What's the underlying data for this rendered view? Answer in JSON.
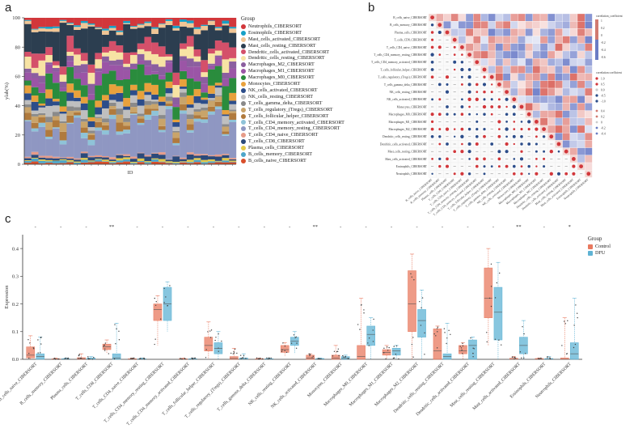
{
  "panels": {
    "a": {
      "label": "a",
      "chart_data": {
        "type": "bar",
        "stacked": true,
        "title": "",
        "xlabel": "ID",
        "ylabel": "ylab(%)",
        "ylim": [
          0,
          100
        ],
        "yticks": [
          0,
          20,
          40,
          60,
          80,
          100
        ],
        "n_samples": 30,
        "legend_title": "Group",
        "series": [
          {
            "name": "Neutrophils_CIBERSORT",
            "color": "#d2373b"
          },
          {
            "name": "Eosinophils_CIBERSORT",
            "color": "#17a0c6"
          },
          {
            "name": "Mast_cells_activated_CIBERSORT",
            "color": "#f0c595"
          },
          {
            "name": "Mast_cells_resting_CIBERSORT",
            "color": "#2c3e50"
          },
          {
            "name": "Dendritic_cells_activated_CIBERSORT",
            "color": "#d4506a"
          },
          {
            "name": "Dendritic_cells_resting_CIBERSORT",
            "color": "#f7e3a4"
          },
          {
            "name": "Macrophages_M2_CIBERSORT",
            "color": "#8b5e9f"
          },
          {
            "name": "Macrophages_M1_CIBERSORT",
            "color": "#9b55a6"
          },
          {
            "name": "Macrophages_M0_CIBERSORT",
            "color": "#2a8c3d"
          },
          {
            "name": "Monocytes_CIBERSORT",
            "color": "#e8a13c"
          },
          {
            "name": "NK_cells_activated_CIBERSORT",
            "color": "#2c4d8a"
          },
          {
            "name": "NK_cells_resting_CIBERSORT",
            "color": "#bfbfbf"
          },
          {
            "name": "T_cells_gamma_delta_CIBERSORT",
            "color": "#8a8a8a"
          },
          {
            "name": "T_cells_regulatory_(Tregs)_CIBERSORT",
            "color": "#c9a46a"
          },
          {
            "name": "T_cells_follicular_helper_CIBERSORT",
            "color": "#b07a3d"
          },
          {
            "name": "T_cells_CD4_memory_activated_CIBERSORT",
            "color": "#8fc3d8"
          },
          {
            "name": "T_cells_CD4_memory_resting_CIBERSORT",
            "color": "#8f97c2"
          },
          {
            "name": "T_cells_CD4_naive_CIBERSORT",
            "color": "#e69b88"
          },
          {
            "name": "T_cells_CD8_CIBERSORT",
            "color": "#2b4a7a"
          },
          {
            "name": "Plasma_cells_CIBERSORT",
            "color": "#e3c94a"
          },
          {
            "name": "B_cells_memory_CIBERSORT",
            "color": "#4ea6c9"
          },
          {
            "name": "B_cells_naive_CIBERSORT",
            "color": "#d94f2b"
          }
        ]
      }
    },
    "b": {
      "label": "b",
      "chart_data": {
        "type": "heatmap",
        "title": "",
        "rows": [
          "B_cells_naive_CIBERSORT",
          "B_cells_memory_CIBERSORT",
          "Plasma_cells_CIBERSORT",
          "T_cells_CD8_CIBERSORT",
          "T_cells_CD4_naive_CIBERSORT",
          "T_cells_CD4_memory_resting_CIBERSORT",
          "T_cells_CD4_memory_activated_CIBERSORT",
          "T_cells_follicular_helper_CIBERSORT",
          "T_cells_regulatory_(Tregs)_CIBERSORT",
          "T_cells_gamma_delta_CIBERSORT",
          "NK_cells_resting_CIBERSORT",
          "NK_cells_activated_CIBERSORT",
          "Monocytes_CIBERSORT",
          "Macrophages_M0_CIBERSORT",
          "Macrophages_M1_CIBERSORT",
          "Macrophages_M2_CIBERSORT",
          "Dendritic_cells_resting_CIBERSORT",
          "Dendritic_cells_activated_CIBERSORT",
          "Mast_cells_resting_CIBERSORT",
          "Mast_cells_activated_CIBERSORT",
          "Eosinophils_CIBERSORT",
          "Neutrophils_CIBERSORT"
        ],
        "legend_upper_title": "correlation_coefficient",
        "legend_upper_ticks": [
          "1",
          "0.2",
          "0",
          "-0.2",
          "-0.4",
          "-0.6"
        ],
        "legend_lower_title": "correlation coefficient",
        "legend_lower_ticks": [
          "1.0",
          "0.5",
          "0.0",
          "-0.5",
          "-1.0"
        ],
        "legend_lower_extra": [
          "0.4",
          "0.2",
          "0",
          "-0.2",
          "-0.4"
        ]
      }
    },
    "c": {
      "label": "c",
      "chart_data": {
        "type": "box",
        "xlabel": "",
        "ylabel": "Expression",
        "ylim": [
          0,
          0.45
        ],
        "yticks": [
          0.0,
          0.1,
          0.2,
          0.3,
          0.4
        ],
        "legend_title": "Group",
        "groups": [
          {
            "name": "Control",
            "color": "#e8795f"
          },
          {
            "name": "DFU",
            "color": "#5fb3d4"
          }
        ],
        "categories": [
          "B_cells_naive_CIBERSORT",
          "B_cells_memory_CIBERSORT",
          "Plasma_cells_CIBERSORT",
          "T_cells_CD8_CIBERSORT",
          "T_cells_CD4_naive_CIBERSORT",
          "T_cells_CD4_memory_resting_CIBERSORT",
          "T_cells_CD4_memory_activated_CIBERSORT",
          "T_cells_follicular_helper_CIBERSORT",
          "T_cells_regulatory_(Tregs)_CIBERSORT",
          "T_cells_gamma_delta_CIBERSORT",
          "NK_cells_resting_CIBERSORT",
          "NK_cells_activated_CIBERSORT",
          "Monocytes_CIBERSORT",
          "Macrophages_M0_CIBERSORT",
          "Macrophages_M1_CIBERSORT",
          "Macrophages_M2_CIBERSORT",
          "Dendritic_cells_resting_CIBERSORT",
          "Dendritic_cells_activated_CIBERSORT",
          "Mast_cells_resting_CIBERSORT",
          "Mast_cells_activated_CIBERSORT",
          "Eosinophils_CIBERSORT",
          "Neutrophils_CIBERSORT"
        ],
        "significance": [
          "-",
          "-",
          "-",
          "**",
          "-",
          "-",
          "-",
          "-",
          "-",
          "-",
          "-",
          "**",
          "-",
          "-",
          "-",
          "-",
          "-",
          "-",
          "-",
          "**",
          "-",
          "*"
        ],
        "series": [
          {
            "name": "Control",
            "boxes": [
              {
                "q1": 0.005,
                "median": 0.015,
                "q3": 0.045,
                "min": 0.0,
                "max": 0.085
              },
              {
                "q1": 0.0,
                "median": 0.0,
                "q3": 0.002,
                "min": 0.0,
                "max": 0.005
              },
              {
                "q1": 0.0,
                "median": 0.002,
                "q3": 0.006,
                "min": 0.0,
                "max": 0.02
              },
              {
                "q1": 0.035,
                "median": 0.045,
                "q3": 0.055,
                "min": 0.02,
                "max": 0.07
              },
              {
                "q1": 0.0,
                "median": 0.0,
                "q3": 0.002,
                "min": 0.0,
                "max": 0.005
              },
              {
                "q1": 0.14,
                "median": 0.18,
                "q3": 0.2,
                "min": 0.05,
                "max": 0.23
              },
              {
                "q1": 0.0,
                "median": 0.0,
                "q3": 0.002,
                "min": 0.0,
                "max": 0.005
              },
              {
                "q1": 0.03,
                "median": 0.05,
                "q3": 0.08,
                "min": 0.0,
                "max": 0.135
              },
              {
                "q1": 0.0,
                "median": 0.003,
                "q3": 0.01,
                "min": 0.0,
                "max": 0.04
              },
              {
                "q1": 0.0,
                "median": 0.0,
                "q3": 0.002,
                "min": 0.0,
                "max": 0.005
              },
              {
                "q1": 0.025,
                "median": 0.035,
                "q3": 0.05,
                "min": 0.01,
                "max": 0.06
              },
              {
                "q1": 0.0,
                "median": 0.005,
                "q3": 0.015,
                "min": 0.0,
                "max": 0.02
              },
              {
                "q1": 0.0,
                "median": 0.005,
                "q3": 0.015,
                "min": 0.0,
                "max": 0.05
              },
              {
                "q1": 0.0,
                "median": 0.01,
                "q3": 0.05,
                "min": 0.0,
                "max": 0.22
              },
              {
                "q1": 0.015,
                "median": 0.025,
                "q3": 0.035,
                "min": 0.0,
                "max": 0.05
              },
              {
                "q1": 0.1,
                "median": 0.2,
                "q3": 0.32,
                "min": 0.0,
                "max": 0.38
              },
              {
                "q1": 0.0,
                "median": 0.03,
                "q3": 0.11,
                "min": 0.0,
                "max": 0.12
              },
              {
                "q1": 0.02,
                "median": 0.03,
                "q3": 0.05,
                "min": 0.0,
                "max": 0.06
              },
              {
                "q1": 0.15,
                "median": 0.22,
                "q3": 0.33,
                "min": 0.05,
                "max": 0.4
              },
              {
                "q1": 0.0,
                "median": 0.0,
                "q3": 0.004,
                "min": 0.0,
                "max": 0.01
              },
              {
                "q1": 0.0,
                "median": 0.0,
                "q3": 0.003,
                "min": 0.0,
                "max": 0.005
              },
              {
                "q1": 0.0,
                "median": 0.0,
                "q3": 0.005,
                "min": 0.0,
                "max": 0.15
              }
            ]
          },
          {
            "name": "DFU",
            "boxes": [
              {
                "q1": 0.0,
                "median": 0.01,
                "q3": 0.02,
                "min": 0.0,
                "max": 0.08
              },
              {
                "q1": 0.0,
                "median": 0.0,
                "q3": 0.002,
                "min": 0.0,
                "max": 0.005
              },
              {
                "q1": 0.0,
                "median": 0.0,
                "q3": 0.005,
                "min": 0.0,
                "max": 0.01
              },
              {
                "q1": 0.0,
                "median": 0.005,
                "q3": 0.02,
                "min": 0.0,
                "max": 0.13
              },
              {
                "q1": 0.0,
                "median": 0.0,
                "q3": 0.002,
                "min": 0.0,
                "max": 0.005
              },
              {
                "q1": 0.14,
                "median": 0.2,
                "q3": 0.26,
                "min": 0.1,
                "max": 0.28
              },
              {
                "q1": 0.0,
                "median": 0.0,
                "q3": 0.002,
                "min": 0.0,
                "max": 0.005
              },
              {
                "q1": 0.02,
                "median": 0.04,
                "q3": 0.06,
                "min": 0.0,
                "max": 0.1
              },
              {
                "q1": 0.0,
                "median": 0.0,
                "q3": 0.005,
                "min": 0.0,
                "max": 0.02
              },
              {
                "q1": 0.0,
                "median": 0.0,
                "q3": 0.002,
                "min": 0.0,
                "max": 0.005
              },
              {
                "q1": 0.05,
                "median": 0.065,
                "q3": 0.08,
                "min": 0.02,
                "max": 0.1
              },
              {
                "q1": 0.0,
                "median": 0.0,
                "q3": 0.003,
                "min": 0.0,
                "max": 0.005
              },
              {
                "q1": 0.0,
                "median": 0.003,
                "q3": 0.01,
                "min": 0.0,
                "max": 0.015
              },
              {
                "q1": 0.05,
                "median": 0.09,
                "q3": 0.12,
                "min": 0.0,
                "max": 0.15
              },
              {
                "q1": 0.015,
                "median": 0.03,
                "q3": 0.04,
                "min": 0.0,
                "max": 0.05
              },
              {
                "q1": 0.08,
                "median": 0.14,
                "q3": 0.18,
                "min": 0.0,
                "max": 0.25
              },
              {
                "q1": 0.0,
                "median": 0.01,
                "q3": 0.02,
                "min": 0.0,
                "max": 0.13
              },
              {
                "q1": 0.0,
                "median": 0.05,
                "q3": 0.07,
                "min": 0.0,
                "max": 0.08
              },
              {
                "q1": 0.07,
                "median": 0.17,
                "q3": 0.26,
                "min": 0.0,
                "max": 0.35
              },
              {
                "q1": 0.02,
                "median": 0.05,
                "q3": 0.08,
                "min": 0.0,
                "max": 0.14
              },
              {
                "q1": 0.0,
                "median": 0.0,
                "q3": 0.003,
                "min": 0.0,
                "max": 0.01
              },
              {
                "q1": 0.0,
                "median": 0.02,
                "q3": 0.06,
                "min": 0.0,
                "max": 0.22
              }
            ]
          }
        ]
      }
    }
  }
}
